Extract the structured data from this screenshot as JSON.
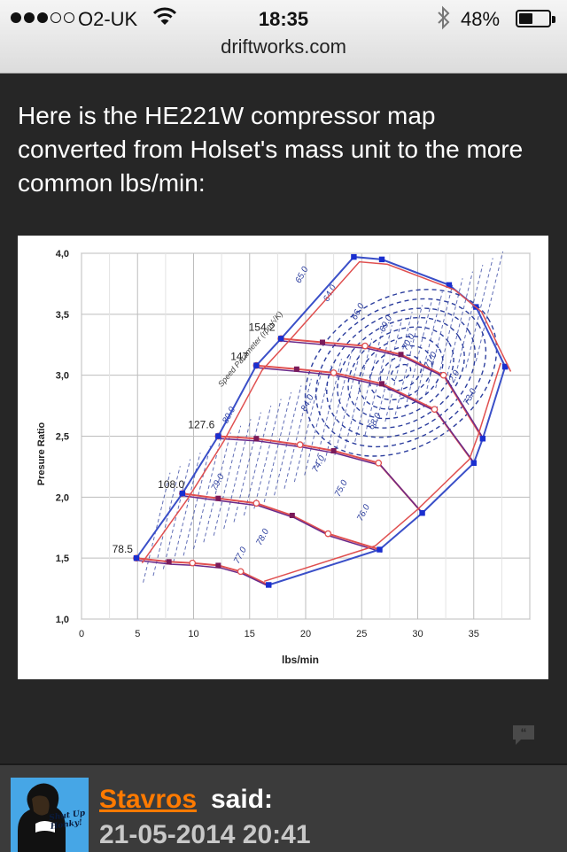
{
  "status_bar": {
    "carrier": "O2-UK",
    "time": "18:35",
    "battery_percent": "48%",
    "battery_level": 0.48,
    "signal_bars": 3,
    "signal_total": 5,
    "icons": [
      "wifi-icon",
      "bluetooth-icon",
      "battery-icon"
    ]
  },
  "browser": {
    "url": "driftworks.com"
  },
  "post": {
    "text": "Here is the HE221W compressor map converted from Holset's mass unit to the more common lbs/min:"
  },
  "chart_data": {
    "type": "line",
    "xlabel": "lbs/min",
    "ylabel": "Presure Ratio",
    "xlim": [
      0,
      40
    ],
    "ylim": [
      1.0,
      4.0
    ],
    "x_ticks": [
      "0",
      "5",
      "10",
      "15",
      "20",
      "25",
      "30",
      "35"
    ],
    "y_ticks": [
      "1,0",
      "1,5",
      "2,0",
      "2,5",
      "3,0",
      "3,5",
      "4,0"
    ],
    "grid": true,
    "speed_line_labels": [
      {
        "text": "78.5",
        "x": 4.9,
        "y": 1.5
      },
      {
        "text": "108.0",
        "x": 9.5,
        "y": 2.03
      },
      {
        "text": "127.6",
        "x": 12.2,
        "y": 2.52
      },
      {
        "text": "147",
        "x": 15.2,
        "y": 3.08
      },
      {
        "text": "154.2",
        "x": 17.6,
        "y": 3.32
      }
    ],
    "annotation": "Speed Parameter (rpm/√K)",
    "surge_line": [
      [
        4.9,
        1.5
      ],
      [
        9.0,
        2.03
      ],
      [
        12.2,
        2.5
      ],
      [
        15.6,
        3.08
      ],
      [
        17.8,
        3.3
      ],
      [
        24.3,
        3.97
      ],
      [
        26.8,
        3.95
      ],
      [
        32.8,
        3.74
      ],
      [
        35.2,
        3.56
      ],
      [
        37.8,
        3.07
      ]
    ],
    "choke_line": [
      [
        37.8,
        3.07
      ],
      [
        35.8,
        2.48
      ],
      [
        35.0,
        2.28
      ],
      [
        30.4,
        1.87
      ],
      [
        26.6,
        1.57
      ],
      [
        16.7,
        1.28
      ]
    ],
    "speed_lines": [
      {
        "name": "78.5",
        "points": [
          [
            4.9,
            1.5
          ],
          [
            7.8,
            1.47
          ],
          [
            9.9,
            1.46
          ],
          [
            12.2,
            1.44
          ],
          [
            14.2,
            1.39
          ],
          [
            16.7,
            1.28
          ]
        ]
      },
      {
        "name": "108.0",
        "points": [
          [
            9.0,
            2.03
          ],
          [
            12.2,
            1.99
          ],
          [
            15.6,
            1.95
          ],
          [
            18.8,
            1.85
          ],
          [
            22.0,
            1.7
          ],
          [
            26.6,
            1.57
          ]
        ]
      },
      {
        "name": "127.6",
        "points": [
          [
            12.2,
            2.5
          ],
          [
            15.6,
            2.48
          ],
          [
            19.5,
            2.43
          ],
          [
            22.5,
            2.38
          ],
          [
            26.5,
            2.28
          ],
          [
            30.4,
            1.87
          ]
        ]
      },
      {
        "name": "147",
        "points": [
          [
            15.6,
            3.08
          ],
          [
            19.2,
            3.05
          ],
          [
            22.5,
            3.02
          ],
          [
            26.8,
            2.93
          ],
          [
            31.5,
            2.72
          ],
          [
            35.0,
            2.28
          ]
        ]
      },
      {
        "name": "154.2",
        "points": [
          [
            17.8,
            3.3
          ],
          [
            21.5,
            3.27
          ],
          [
            25.3,
            3.24
          ],
          [
            28.5,
            3.17
          ],
          [
            32.3,
            3.0
          ],
          [
            35.8,
            2.48
          ]
        ]
      }
    ],
    "efficiency_labels": [
      "65.0",
      "64.0",
      "66.0",
      "69.0",
      "70.0",
      "71.0",
      "72.0",
      "73.0",
      "74.0",
      "75.0",
      "76.0",
      "77.0",
      "78.0",
      "79.0",
      "80.0",
      "84.0",
      "68.0"
    ]
  },
  "reply": {
    "username": "Stavros",
    "said_label": "said:",
    "date": "21-05-2014 20:41",
    "avatar_caption": "Shut Up Honky!"
  }
}
